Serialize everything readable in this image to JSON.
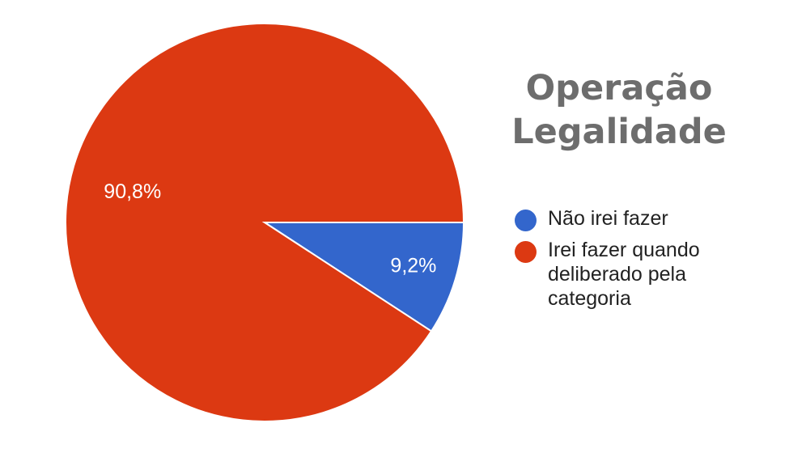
{
  "chart_data": {
    "type": "pie",
    "title_lines": [
      "Operação",
      "Legalidade"
    ],
    "slices": [
      {
        "label": "Não irei fazer",
        "value": 9.2,
        "display": "9,2%",
        "color": "#3366cc"
      },
      {
        "label": "Irei fazer quando deliberado pela categoria",
        "value": 90.8,
        "display": "90,8%",
        "color": "#dc3912"
      }
    ],
    "legend_position": "right"
  },
  "colors": {
    "slice_border": "#ffffff",
    "data_label": "#ffffff",
    "title": "#6d6d6d"
  }
}
